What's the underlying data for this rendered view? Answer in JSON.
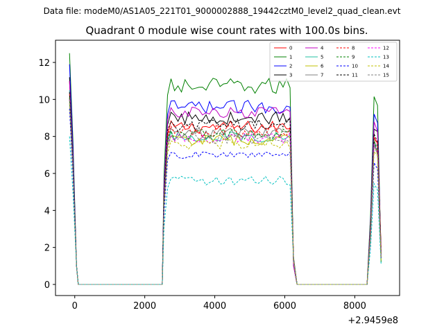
{
  "suptitle": "Data file: modeM0/AS1A05_221T01_9000002888_19442cztM0_level2_quad_clean.evt",
  "chart_data": {
    "type": "line",
    "title": "Quadrant 0 module wise count rates with 100.0s bins.",
    "xlabel": "",
    "ylabel": "",
    "x_offset_label": "+2.9459e8",
    "xlim": [
      -550,
      9280
    ],
    "ylim": [
      -0.6,
      13.2
    ],
    "xticks": [
      0,
      2000,
      4000,
      6000,
      8000
    ],
    "xtick_labels": [
      "0",
      "2000",
      "4000",
      "6000",
      "8000"
    ],
    "yticks": [
      0,
      2,
      4,
      6,
      8,
      10,
      12
    ],
    "ytick_labels": [
      "0",
      "2",
      "4",
      "6",
      "8",
      "10",
      "12"
    ],
    "grid": false,
    "legend_position": "top-right",
    "x_segments": [
      {
        "start": -150,
        "end": 50
      },
      {
        "start": 2650,
        "end": 6150
      },
      {
        "start": 8450,
        "end": 8750
      }
    ],
    "bin_width": 100,
    "series": [
      {
        "name": "0",
        "color": "#ff0000",
        "dash": false,
        "initial": 11.0,
        "level": 8.5,
        "noise": 0.35,
        "final": 2.0
      },
      {
        "name": "1",
        "color": "#008000",
        "dash": false,
        "initial": 12.5,
        "level": 10.7,
        "noise": 0.45,
        "final": 1.2
      },
      {
        "name": "2",
        "color": "#0000ff",
        "dash": false,
        "initial": 11.9,
        "level": 9.6,
        "noise": 0.35,
        "final": 1.5
      },
      {
        "name": "3",
        "color": "#000000",
        "dash": false,
        "initial": 11.2,
        "level": 9.0,
        "noise": 0.35,
        "final": 1.8
      },
      {
        "name": "4",
        "color": "#c000c0",
        "dash": false,
        "initial": 11.0,
        "level": 9.3,
        "noise": 0.3,
        "final": 1.5
      },
      {
        "name": "5",
        "color": "#20c0a0",
        "dash": false,
        "initial": 10.5,
        "level": 8.0,
        "noise": 0.3,
        "final": 1.3
      },
      {
        "name": "6",
        "color": "#c0c000",
        "dash": false,
        "initial": 10.0,
        "level": 7.8,
        "noise": 0.3,
        "final": 1.4
      },
      {
        "name": "7",
        "color": "#808080",
        "dash": false,
        "initial": 10.2,
        "level": 8.2,
        "noise": 0.3,
        "final": 1.6
      },
      {
        "name": "8",
        "color": "#ff0000",
        "dash": true,
        "initial": 10.3,
        "level": 8.3,
        "noise": 0.35,
        "final": 1.7
      },
      {
        "name": "9",
        "color": "#008000",
        "dash": true,
        "initial": 10.1,
        "level": 8.1,
        "noise": 0.3,
        "final": 1.5
      },
      {
        "name": "10",
        "color": "#0000ff",
        "dash": true,
        "initial": 9.5,
        "level": 7.0,
        "noise": 0.2,
        "final": 1.4
      },
      {
        "name": "11",
        "color": "#000000",
        "dash": true,
        "initial": 10.4,
        "level": 8.6,
        "noise": 0.35,
        "final": 1.6
      },
      {
        "name": "12",
        "color": "#ff00ff",
        "dash": true,
        "initial": 10.0,
        "level": 7.9,
        "noise": 0.3,
        "final": 1.5
      },
      {
        "name": "13",
        "color": "#00c0c0",
        "dash": true,
        "initial": 8.0,
        "level": 5.6,
        "noise": 0.25,
        "final": 1.1
      },
      {
        "name": "14",
        "color": "#c0c000",
        "dash": true,
        "initial": 9.8,
        "level": 7.6,
        "noise": 0.3,
        "final": 1.3
      },
      {
        "name": "15",
        "color": "#808080",
        "dash": true,
        "initial": 10.0,
        "level": 7.9,
        "noise": 0.3,
        "final": 1.5
      }
    ]
  }
}
